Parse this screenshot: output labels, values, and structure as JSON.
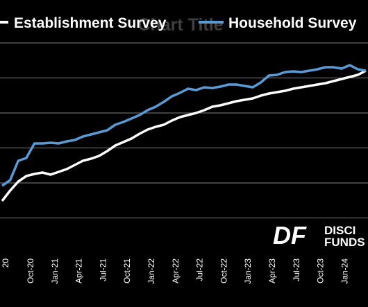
{
  "chart_data": {
    "type": "line",
    "title": "Chart Title",
    "xlabel": "",
    "ylabel": "",
    "grid": true,
    "legend_position": "top",
    "tick_labels": [
      "Oct-20",
      "Jan-21",
      "Apr-21",
      "Jul-21",
      "Oct-21",
      "Jan-22",
      "Apr-22",
      "Jul-22",
      "Oct-22",
      "Jan-23",
      "Apr-23",
      "Jul-23",
      "Oct-23",
      "Jan-24"
    ],
    "partial_tick_label": "20",
    "x": [
      "Jun-20",
      "Jul-20",
      "Aug-20",
      "Sep-20",
      "Oct-20",
      "Nov-20",
      "Dec-20",
      "Jan-21",
      "Feb-21",
      "Mar-21",
      "Apr-21",
      "May-21",
      "Jun-21",
      "Jul-21",
      "Aug-21",
      "Sep-21",
      "Oct-21",
      "Nov-21",
      "Dec-21",
      "Jan-22",
      "Feb-22",
      "Mar-22",
      "Apr-22",
      "May-22",
      "Jun-22",
      "Jul-22",
      "Aug-22",
      "Sep-22",
      "Oct-22",
      "Nov-22",
      "Dec-22",
      "Jan-23",
      "Feb-23",
      "Mar-23",
      "Apr-23",
      "May-23",
      "Jun-23",
      "Jul-23",
      "Aug-23",
      "Sep-23",
      "Oct-23",
      "Nov-23",
      "Dec-23",
      "Jan-24",
      "Feb-24",
      "Mar-24"
    ],
    "series": [
      {
        "name": "Establishment Survey",
        "color": "#ffffff",
        "values": [
          290,
          275,
          262,
          254,
          251,
          249,
          252,
          248,
          244,
          238,
          232,
          229,
          225,
          218,
          210,
          205,
          200,
          193,
          187,
          183,
          180,
          174,
          169,
          166,
          163,
          159,
          154,
          152,
          149,
          146,
          144,
          142,
          138,
          135,
          133,
          131,
          128,
          126,
          124,
          122,
          120,
          117,
          114,
          111,
          108,
          102
        ]
      },
      {
        "name": "Household Survey",
        "color": "#5b9bd5",
        "values": [
          268,
          260,
          232,
          228,
          207,
          207,
          206,
          207,
          204,
          202,
          197,
          194,
          191,
          188,
          180,
          176,
          171,
          166,
          159,
          154,
          147,
          139,
          134,
          128,
          130,
          126,
          127,
          125,
          122,
          122,
          124,
          126,
          119,
          109,
          108,
          104,
          103,
          104,
          102,
          100,
          97,
          97,
          99,
          94,
          100,
          102
        ]
      }
    ],
    "watermark_text": [
      "DISCI",
      "FUNDS"
    ]
  },
  "colors": {
    "background": "#000000",
    "grid": "#7f7f7f",
    "text": "#ffffff",
    "household": "#5b9bd5",
    "establishment": "#ffffff"
  }
}
